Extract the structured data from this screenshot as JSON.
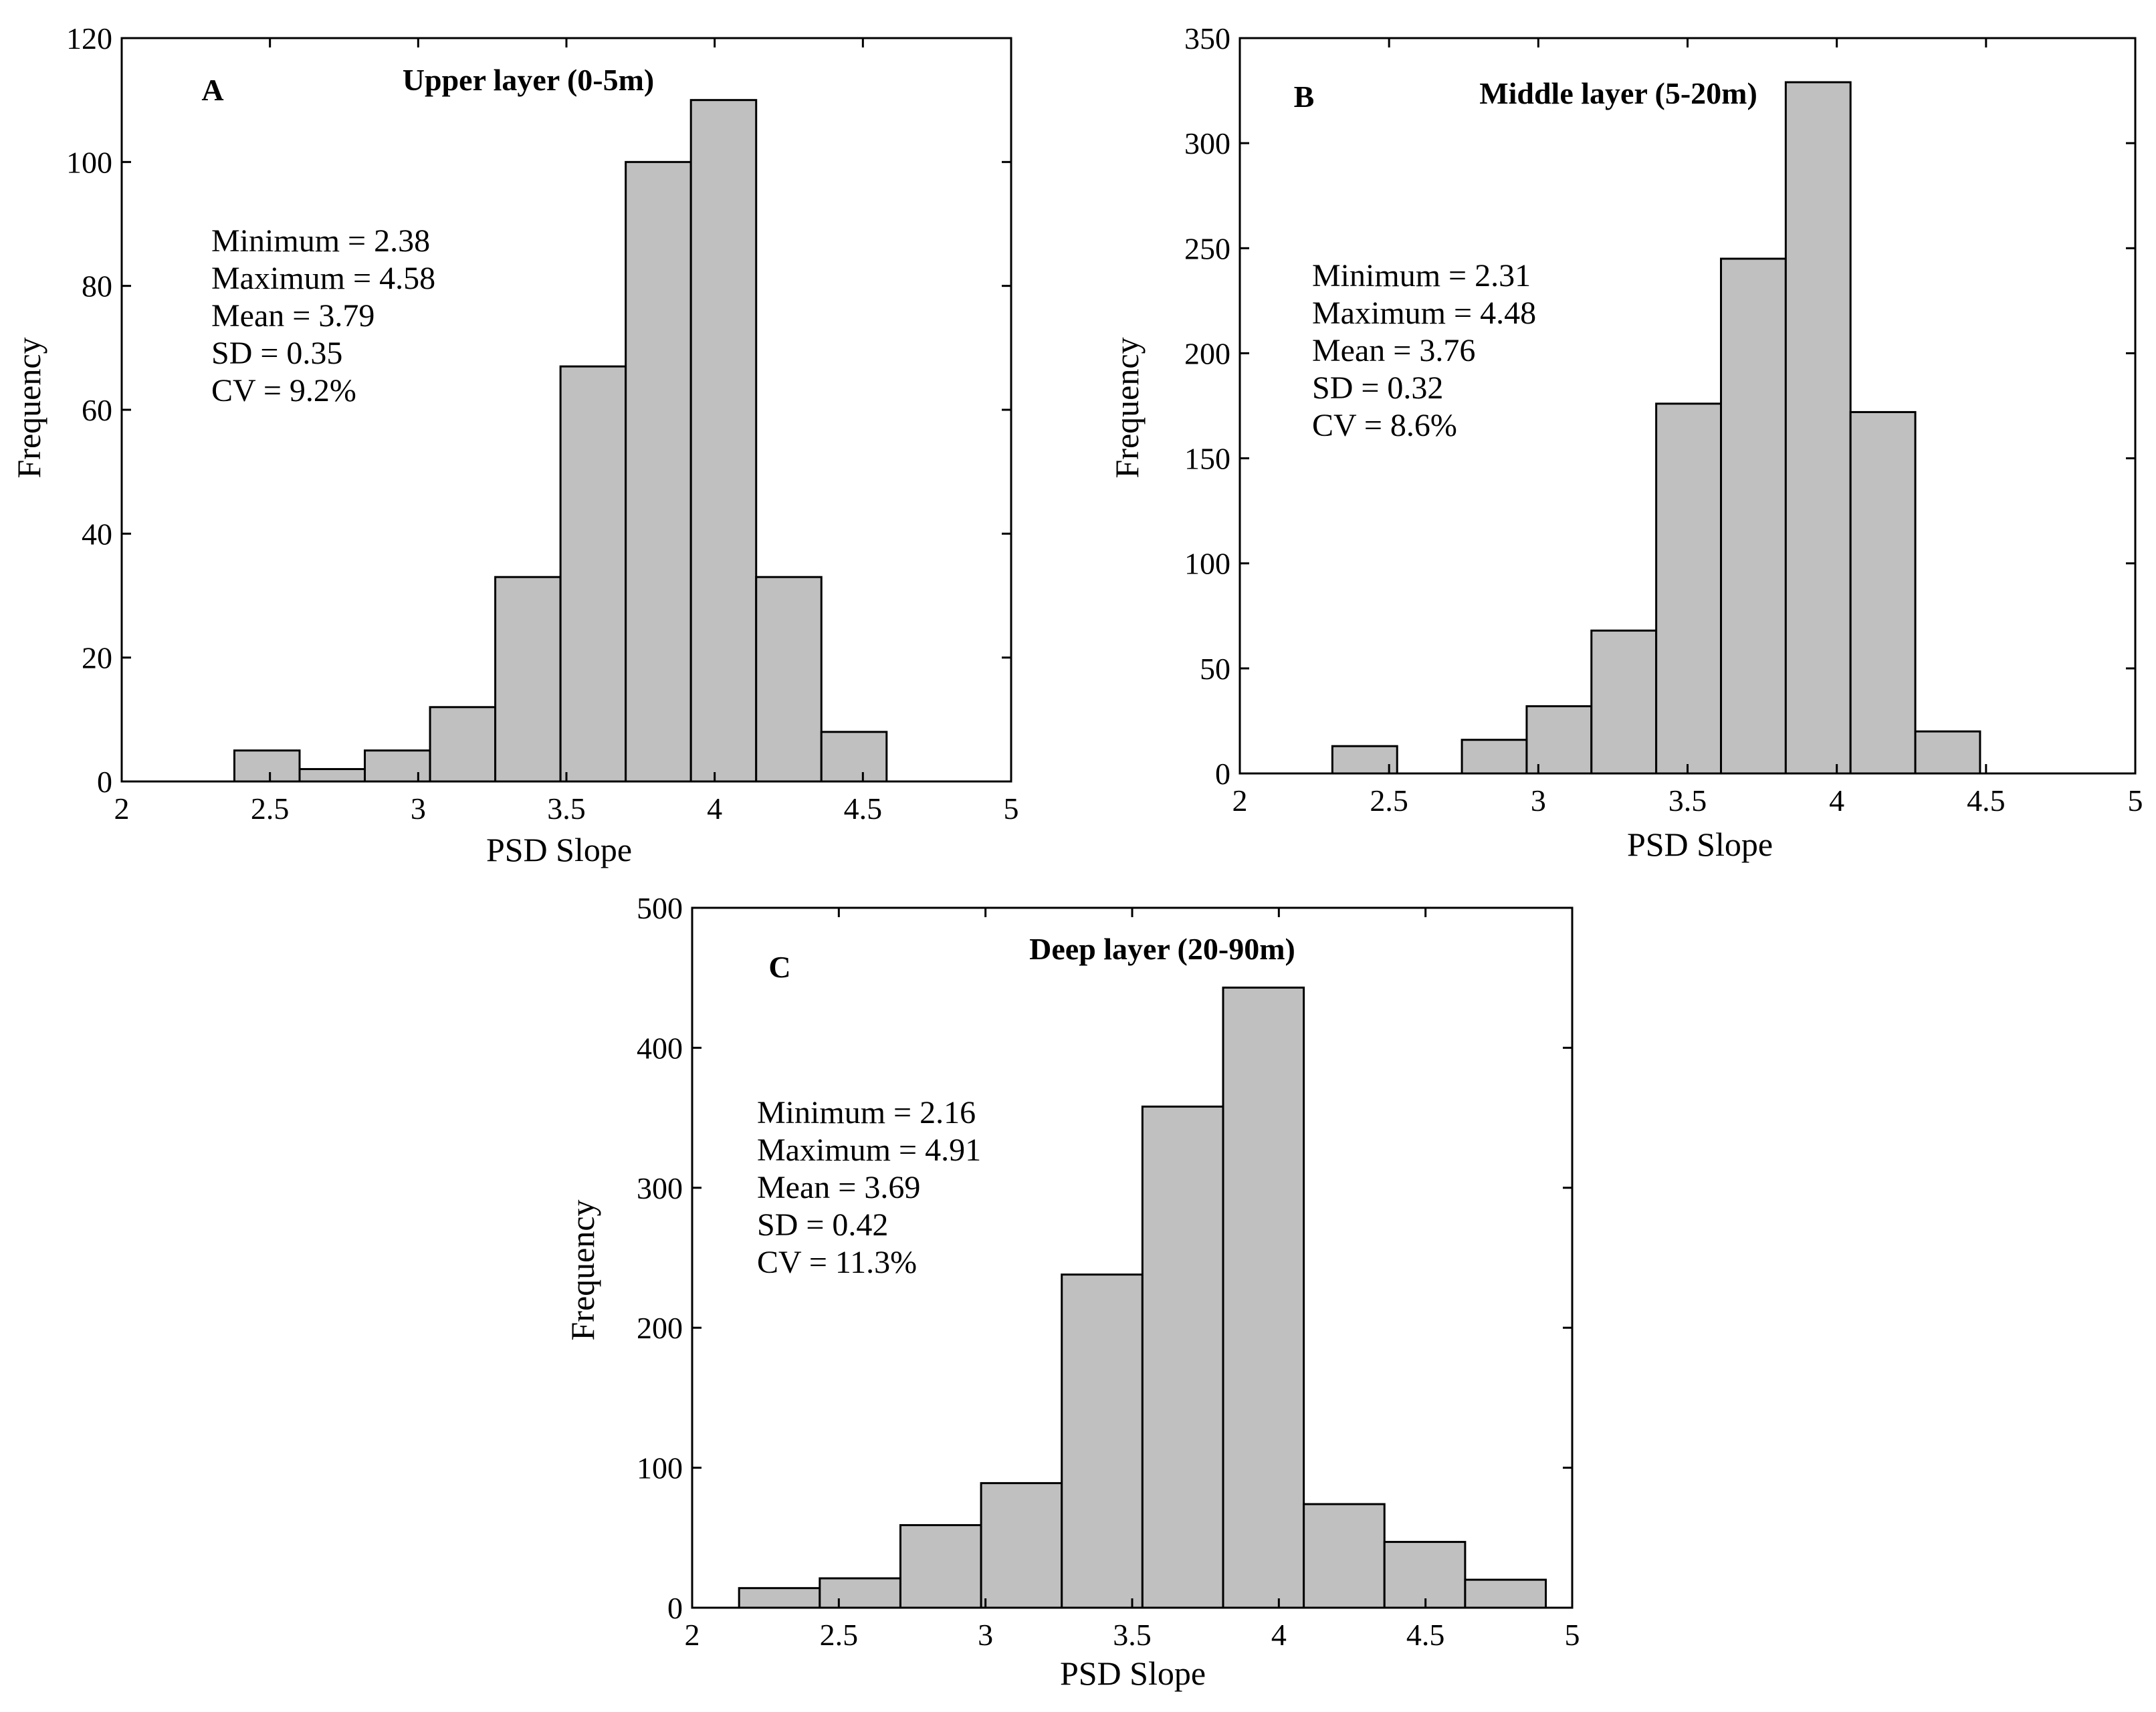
{
  "colors": {
    "bar_fill": "#c0c0c0",
    "bar_stroke": "#000000",
    "background": "#ffffff"
  },
  "chart_data": [
    {
      "type": "bar",
      "panel_letter": "A",
      "title": "Upper layer (0-5m)",
      "xlabel": "PSD Slope",
      "ylabel": "Frequency",
      "xlim": [
        2,
        5
      ],
      "ylim": [
        0,
        120
      ],
      "xticks": [
        2,
        2.5,
        3,
        3.5,
        4,
        4.5,
        5
      ],
      "xtick_labels": [
        "2",
        "2.5",
        "3",
        "3.5",
        "4",
        "4.5",
        "5"
      ],
      "yticks": [
        0,
        20,
        40,
        60,
        80,
        100,
        120
      ],
      "ytick_labels": [
        "0",
        "20",
        "40",
        "60",
        "80",
        "100",
        "120"
      ],
      "bin_start": 2.38,
      "bin_width": 0.22,
      "values": [
        5,
        2,
        5,
        12,
        33,
        67,
        100,
        110,
        33,
        8
      ],
      "stats": [
        "Minimum = 2.38",
        "Maximum = 4.58",
        "Mean = 3.79",
        "SD = 0.35",
        "CV = 9.2%"
      ]
    },
    {
      "type": "bar",
      "panel_letter": "B",
      "title": "Middle layer (5-20m)",
      "xlabel": "PSD Slope",
      "ylabel": "Frequency",
      "xlim": [
        2,
        5
      ],
      "ylim": [
        0,
        350
      ],
      "xticks": [
        2,
        2.5,
        3,
        3.5,
        4,
        4.5,
        5
      ],
      "xtick_labels": [
        "2",
        "2.5",
        "3",
        "3.5",
        "4",
        "4.5",
        "5"
      ],
      "yticks": [
        0,
        50,
        100,
        150,
        200,
        250,
        300,
        350
      ],
      "ytick_labels": [
        "0",
        "50",
        "100",
        "150",
        "200",
        "250",
        "300",
        "350"
      ],
      "bin_start": 2.31,
      "bin_width": 0.217,
      "values": [
        13,
        0,
        16,
        32,
        68,
        176,
        245,
        329,
        172,
        20
      ],
      "stats": [
        "Minimum = 2.31",
        "Maximum = 4.48",
        "Mean = 3.76",
        "SD = 0.32",
        "CV = 8.6%"
      ]
    },
    {
      "type": "bar",
      "panel_letter": "C",
      "title": "Deep layer (20-90m)",
      "xlabel": "PSD Slope",
      "ylabel": "Frequency",
      "xlim": [
        2,
        5
      ],
      "ylim": [
        0,
        500
      ],
      "xticks": [
        2,
        2.5,
        3,
        3.5,
        4,
        4.5,
        5
      ],
      "xtick_labels": [
        "2",
        "2.5",
        "3",
        "3.5",
        "4",
        "4.5",
        "5"
      ],
      "yticks": [
        0,
        100,
        200,
        300,
        400,
        500
      ],
      "ytick_labels": [
        "0",
        "100",
        "200",
        "300",
        "400",
        "500"
      ],
      "bin_start": 2.16,
      "bin_width": 0.275,
      "values": [
        14,
        21,
        59,
        89,
        238,
        358,
        443,
        74,
        47,
        20
      ],
      "stats": [
        "Minimum = 2.16",
        "Maximum = 4.91",
        "Mean = 3.69",
        "SD = 0.42",
        "CV = 11.3%"
      ]
    }
  ]
}
